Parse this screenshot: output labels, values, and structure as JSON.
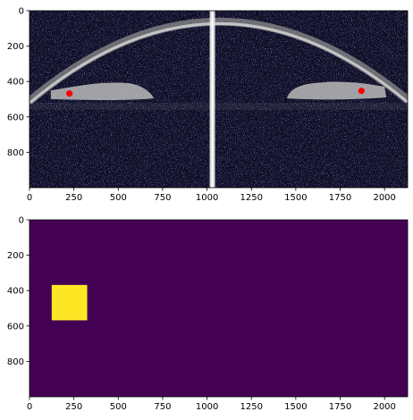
{
  "chart_data": [
    {
      "type": "image",
      "image_kind": "grayscale OCT scan with faint blue speckle noise",
      "xlim": [
        0,
        2130
      ],
      "ylim": [
        1000,
        0
      ],
      "x_ticks": [
        0,
        250,
        500,
        750,
        1000,
        1250,
        1500,
        1750,
        2000
      ],
      "y_ticks": [
        0,
        200,
        400,
        600,
        800
      ],
      "x_tick_labels": [
        "0",
        "250",
        "500",
        "750",
        "1000",
        "1250",
        "1500",
        "1750",
        "2000"
      ],
      "y_tick_labels": [
        "0",
        "200",
        "400",
        "600",
        "800"
      ],
      "markers": [
        {
          "x": 225,
          "y": 468,
          "color": "#ff0000"
        },
        {
          "x": 1870,
          "y": 453,
          "color": "#ff0000"
        }
      ],
      "structures": {
        "arc_peak_y": 62,
        "arc_end_left": [
          0,
          510
        ],
        "arc_end_right": [
          2130,
          505
        ],
        "center_line_x": 1030
      },
      "colors": {
        "background": "#0a0a22",
        "tissue": "#cfcfcf",
        "marker": "#ff0000"
      }
    },
    {
      "type": "heatmap",
      "colormap": "viridis",
      "xlim": [
        0,
        2130
      ],
      "ylim": [
        1000,
        0
      ],
      "x_ticks": [
        0,
        250,
        500,
        750,
        1000,
        1250,
        1500,
        1750,
        2000
      ],
      "y_ticks": [
        0,
        200,
        400,
        600,
        800
      ],
      "x_tick_labels": [
        "0",
        "250",
        "500",
        "750",
        "1000",
        "1250",
        "1500",
        "1750",
        "2000"
      ],
      "y_tick_labels": [
        "0",
        "200",
        "400",
        "600",
        "800"
      ],
      "background_value": 0,
      "regions": [
        {
          "x0": 125,
          "x1": 325,
          "y0": 368,
          "y1": 568,
          "value": 1
        }
      ],
      "colors": {
        "low": "#440154",
        "high": "#fde725"
      }
    }
  ]
}
